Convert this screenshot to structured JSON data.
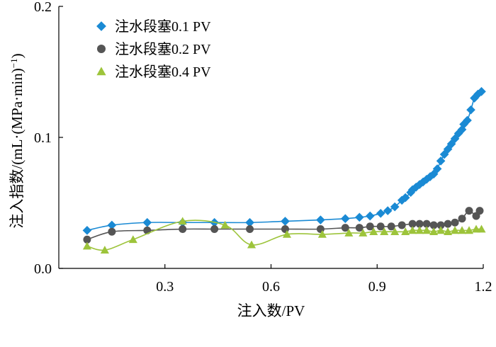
{
  "chart_data": {
    "type": "line",
    "xlabel": "注入数/PV",
    "ylabel_main": "注入指数/(mL·(MPa·min)",
    "ylabel_sup": "−1",
    "ylabel_tail": ")",
    "xlim": [
      0,
      1.2
    ],
    "ylim": [
      0,
      0.2
    ],
    "xticks": [
      "0.3",
      "0.6",
      "0.9",
      "1.2"
    ],
    "yticks": [
      "0.0",
      "0.1",
      "0.2"
    ],
    "grid": false,
    "legend_position": "top-left",
    "series": [
      {
        "name": "注水段塞0.1 PV",
        "marker": "diamond",
        "color": "#1a8ad4",
        "x": [
          0.08,
          0.15,
          0.25,
          0.35,
          0.44,
          0.54,
          0.64,
          0.74,
          0.81,
          0.85,
          0.88,
          0.91,
          0.93,
          0.95,
          0.97,
          0.98,
          0.995,
          1.0,
          1.01,
          1.02,
          1.03,
          1.04,
          1.05,
          1.06,
          1.07,
          1.08,
          1.09,
          1.1,
          1.11,
          1.12,
          1.13,
          1.14,
          1.145,
          1.155,
          1.165,
          1.175,
          1.185,
          1.195
        ],
        "y": [
          0.029,
          0.033,
          0.035,
          0.035,
          0.035,
          0.035,
          0.036,
          0.037,
          0.038,
          0.039,
          0.04,
          0.042,
          0.044,
          0.047,
          0.052,
          0.054,
          0.058,
          0.06,
          0.062,
          0.064,
          0.066,
          0.068,
          0.07,
          0.072,
          0.076,
          0.082,
          0.087,
          0.091,
          0.095,
          0.099,
          0.103,
          0.106,
          0.11,
          0.113,
          0.121,
          0.13,
          0.133,
          0.135
        ]
      },
      {
        "name": "注水段塞0.2 PV",
        "marker": "circle",
        "color": "#555555",
        "x": [
          0.08,
          0.15,
          0.25,
          0.35,
          0.44,
          0.54,
          0.64,
          0.74,
          0.81,
          0.85,
          0.88,
          0.91,
          0.94,
          0.97,
          1.0,
          1.02,
          1.04,
          1.06,
          1.08,
          1.1,
          1.12,
          1.14,
          1.16,
          1.18,
          1.19
        ],
        "y": [
          0.022,
          0.028,
          0.029,
          0.03,
          0.03,
          0.03,
          0.03,
          0.03,
          0.031,
          0.031,
          0.032,
          0.032,
          0.032,
          0.033,
          0.034,
          0.034,
          0.034,
          0.033,
          0.033,
          0.034,
          0.035,
          0.038,
          0.044,
          0.04,
          0.044
        ]
      },
      {
        "name": "注水段塞0.4 PV",
        "marker": "triangle",
        "color": "#9dc43b",
        "x": [
          0.08,
          0.13,
          0.21,
          0.35,
          0.47,
          0.545,
          0.645,
          0.745,
          0.82,
          0.86,
          0.89,
          0.92,
          0.95,
          0.98,
          1.0,
          1.02,
          1.04,
          1.06,
          1.08,
          1.1,
          1.12,
          1.14,
          1.16,
          1.18,
          1.195
        ],
        "y": [
          0.017,
          0.014,
          0.022,
          0.036,
          0.033,
          0.018,
          0.026,
          0.026,
          0.027,
          0.027,
          0.028,
          0.028,
          0.028,
          0.028,
          0.029,
          0.029,
          0.029,
          0.028,
          0.029,
          0.028,
          0.029,
          0.029,
          0.029,
          0.03,
          0.03
        ]
      }
    ]
  }
}
